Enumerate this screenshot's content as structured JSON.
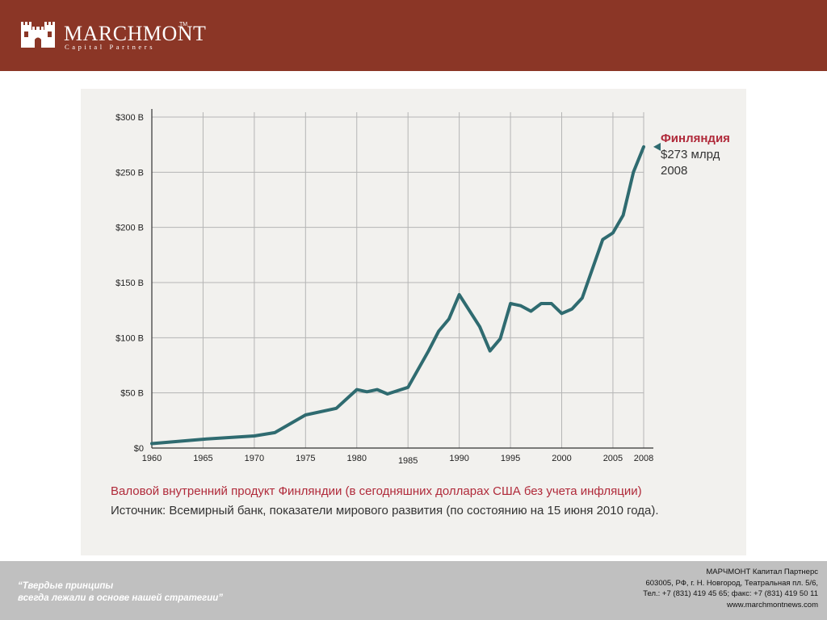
{
  "header": {
    "brand": "MARCHMONT",
    "tm": "TM",
    "tagline": "Capital Partners",
    "brand_color": "#8b3626"
  },
  "chart_data": {
    "type": "line",
    "x": [
      1960,
      1965,
      1970,
      1972,
      1975,
      1978,
      1980,
      1981,
      1982,
      1983,
      1985,
      1987,
      1988,
      1989,
      1990,
      1992,
      1993,
      1994,
      1995,
      1996,
      1997,
      1998,
      1999,
      2000,
      2001,
      2002,
      2004,
      2005,
      2006,
      2007,
      2008
    ],
    "values": [
      4,
      8,
      11,
      14,
      30,
      36,
      53,
      51,
      53,
      49,
      55,
      88,
      106,
      117,
      139,
      110,
      88,
      99,
      131,
      129,
      124,
      131,
      131,
      122,
      126,
      136,
      189,
      195,
      211,
      250,
      273
    ],
    "x_ticks": [
      "1960",
      "1965",
      "1970",
      "1975",
      "1980",
      "1985",
      "1990",
      "1995",
      "2000",
      "2005",
      "2008"
    ],
    "y_ticks": [
      "$0",
      "$50 B",
      "$100 B",
      "$150 B",
      "$200 B",
      "$250 B",
      "$300 B"
    ],
    "xlim": [
      1960,
      2008
    ],
    "ylim": [
      0,
      300
    ],
    "grid": true,
    "line_color": "#2f6b70",
    "annotation": {
      "name": "Финляндия",
      "value": "$273 млрд",
      "year": "2008",
      "name_color": "#b02a3a"
    },
    "title": "Валовой внутренний продукт Финляндии (в сегодняшних долларах США без учета инфляции)",
    "source": "Источник: Всемирный банк, показатели мирового развития (по состоянию на 15 июня 2010 года)."
  },
  "footer": {
    "slogan_line1": "“Твердые принципы",
    "slogan_line2": "всегда лежали в основе нашей стратегии”",
    "company": "МАРЧМОНТ Капитал Партнерс",
    "address": "603005, РФ, г. Н. Новгород, Театральная пл. 5/6,",
    "phone": "Тел.: +7 (831) 419 45 65; факс: +7 (831) 419 50 11",
    "website": "www.marchmontnews.com"
  }
}
